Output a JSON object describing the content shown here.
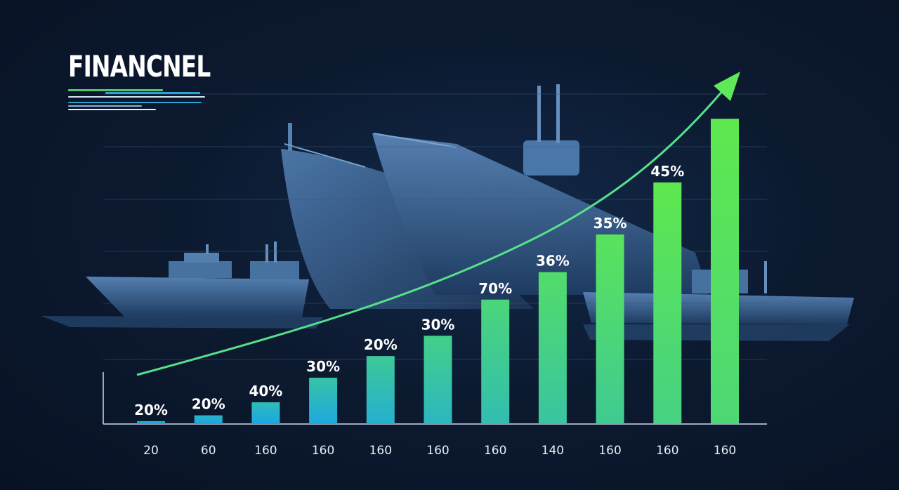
{
  "title": "FINANCNEL",
  "colors": {
    "background": "#0b1628",
    "bar_start": "#1aa6e6",
    "bar_end": "#5ee84f",
    "trend": "#57e08a",
    "ship": "#3c6a9c"
  },
  "chart_data": {
    "type": "bar",
    "categories": [
      "20",
      "60",
      "160",
      "160",
      "160",
      "160",
      "160",
      "140",
      "160",
      "160",
      "160"
    ],
    "values": [
      2,
      6,
      15,
      32,
      47,
      61,
      86,
      105,
      131,
      167,
      211
    ],
    "data_labels": [
      "20%",
      "20%",
      "40%",
      "30%",
      "20%",
      "30%",
      "70%",
      "36%",
      "35%",
      "45%",
      ""
    ],
    "ylim": [
      0,
      230
    ],
    "grid": true,
    "trend_arrow": true,
    "legend": "none"
  }
}
